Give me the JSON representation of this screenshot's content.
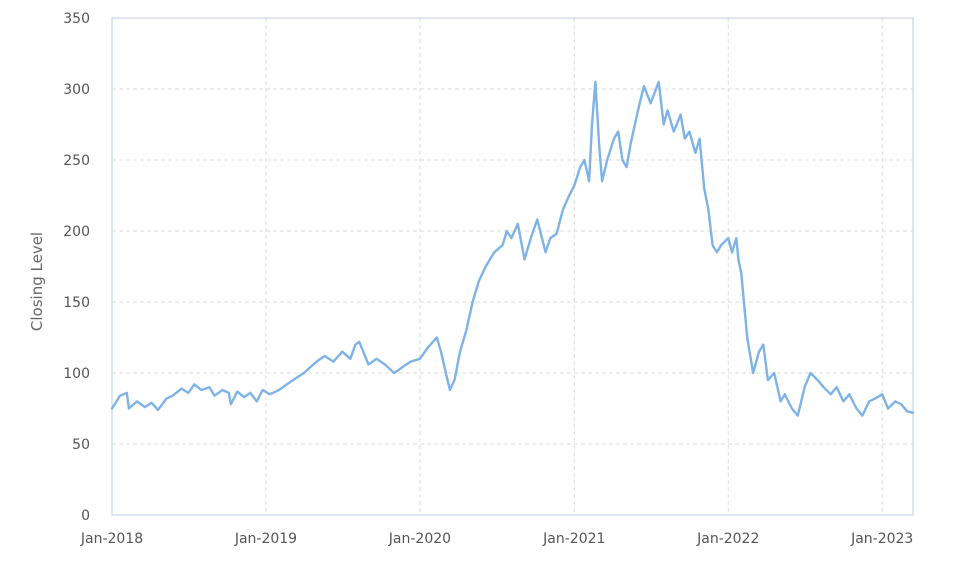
{
  "chart_data": {
    "type": "line",
    "title": "",
    "xlabel": "",
    "ylabel": "Closing Level",
    "ylim": [
      0,
      350
    ],
    "xlim": [
      "2018-01-01",
      "2023-03-15"
    ],
    "yticks": [
      0,
      50,
      100,
      150,
      200,
      250,
      300,
      350
    ],
    "xticks": [
      {
        "date": "2018-01-01",
        "label": "Jan-2018"
      },
      {
        "date": "2019-01-01",
        "label": "Jan-2019"
      },
      {
        "date": "2020-01-01",
        "label": "Jan-2020"
      },
      {
        "date": "2021-01-01",
        "label": "Jan-2021"
      },
      {
        "date": "2022-01-01",
        "label": "Jan-2022"
      },
      {
        "date": "2023-01-01",
        "label": "Jan-2023"
      }
    ],
    "grid": true,
    "legend": "none",
    "series": [
      {
        "color": "#7fb3e6",
        "x": [
          "2018-01-01",
          "2018-01-20",
          "2018-02-05",
          "2018-02-10",
          "2018-03-01",
          "2018-03-20",
          "2018-04-05",
          "2018-04-20",
          "2018-05-10",
          "2018-05-25",
          "2018-06-15",
          "2018-07-01",
          "2018-07-15",
          "2018-08-01",
          "2018-08-20",
          "2018-09-01",
          "2018-09-20",
          "2018-10-05",
          "2018-10-10",
          "2018-10-25",
          "2018-11-10",
          "2018-11-25",
          "2018-12-10",
          "2018-12-24",
          "2019-01-10",
          "2019-02-01",
          "2019-03-01",
          "2019-04-01",
          "2019-05-01",
          "2019-05-20",
          "2019-06-10",
          "2019-07-01",
          "2019-07-20",
          "2019-08-01",
          "2019-08-10",
          "2019-09-01",
          "2019-09-20",
          "2019-10-10",
          "2019-11-01",
          "2019-11-20",
          "2019-12-10",
          "2020-01-01",
          "2020-01-20",
          "2020-02-10",
          "2020-02-20",
          "2020-03-01",
          "2020-03-12",
          "2020-03-23",
          "2020-04-05",
          "2020-04-20",
          "2020-05-05",
          "2020-05-20",
          "2020-06-05",
          "2020-06-25",
          "2020-07-15",
          "2020-07-25",
          "2020-08-05",
          "2020-08-20",
          "2020-09-05",
          "2020-09-20",
          "2020-10-05",
          "2020-10-25",
          "2020-11-05",
          "2020-11-20",
          "2020-12-05",
          "2020-12-20",
          "2021-01-01",
          "2021-01-15",
          "2021-01-25",
          "2021-02-05",
          "2021-02-12",
          "2021-02-20",
          "2021-03-01",
          "2021-03-08",
          "2021-03-20",
          "2021-04-05",
          "2021-04-15",
          "2021-04-25",
          "2021-05-05",
          "2021-05-15",
          "2021-06-01",
          "2021-06-15",
          "2021-07-01",
          "2021-07-20",
          "2021-08-01",
          "2021-08-10",
          "2021-08-25",
          "2021-09-10",
          "2021-09-20",
          "2021-10-01",
          "2021-10-15",
          "2021-10-25",
          "2021-11-05",
          "2021-11-15",
          "2021-11-25",
          "2021-12-05",
          "2021-12-15",
          "2022-01-01",
          "2022-01-10",
          "2022-01-20",
          "2022-01-25",
          "2022-02-01",
          "2022-02-15",
          "2022-03-01",
          "2022-03-15",
          "2022-03-25",
          "2022-04-05",
          "2022-04-20",
          "2022-05-05",
          "2022-05-15",
          "2022-06-01",
          "2022-06-15",
          "2022-07-01",
          "2022-07-15",
          "2022-08-01",
          "2022-08-15",
          "2022-09-01",
          "2022-09-15",
          "2022-10-01",
          "2022-10-15",
          "2022-11-01",
          "2022-11-15",
          "2022-12-01",
          "2022-12-15",
          "2023-01-01",
          "2023-01-15",
          "2023-02-01",
          "2023-02-15",
          "2023-03-01",
          "2023-03-15"
        ],
        "y": [
          75,
          84,
          86,
          75,
          80,
          76,
          79,
          74,
          82,
          84,
          89,
          86,
          92,
          88,
          90,
          84,
          88,
          86,
          78,
          87,
          83,
          86,
          80,
          88,
          85,
          88,
          94,
          100,
          108,
          112,
          108,
          115,
          110,
          120,
          122,
          106,
          110,
          106,
          100,
          104,
          108,
          110,
          118,
          125,
          115,
          102,
          88,
          95,
          115,
          130,
          150,
          165,
          175,
          185,
          190,
          200,
          195,
          205,
          180,
          195,
          208,
          185,
          195,
          198,
          215,
          225,
          232,
          245,
          250,
          235,
          275,
          305,
          260,
          235,
          250,
          265,
          270,
          250,
          245,
          262,
          285,
          302,
          290,
          305,
          275,
          285,
          270,
          282,
          265,
          270,
          255,
          265,
          230,
          215,
          190,
          185,
          190,
          195,
          185,
          195,
          180,
          170,
          125,
          100,
          115,
          120,
          95,
          100,
          80,
          85,
          75,
          70,
          90,
          100,
          95,
          90,
          85,
          90,
          80,
          85,
          75,
          70,
          80,
          82,
          85,
          75,
          80,
          78,
          73,
          72
        ]
      }
    ]
  }
}
